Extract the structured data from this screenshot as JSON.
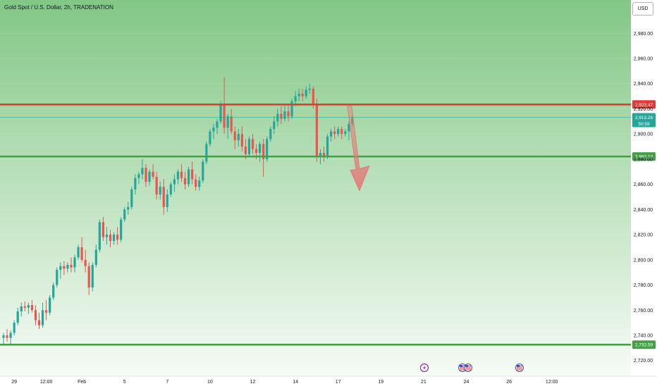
{
  "header": {
    "title": "Gold Spot / U.S. Dollar, 2h, TRADENATION",
    "currency_button": "USD"
  },
  "colors": {
    "bull": "#26a69a",
    "bear": "#ef5350",
    "resistance_line": "#e53935",
    "support_line": "#43a047",
    "arrow": "#e57373",
    "background_top": "#82c785",
    "background_bottom": "#f6fbf6",
    "price_badge": "#26a69a"
  },
  "markers": {
    "lightning_icon": "lightning-icon",
    "flag_icon": "us-flag-icon"
  },
  "chart_data": {
    "type": "candlestick",
    "title": "Gold Spot / U.S. Dollar, 2h, TRADENATION",
    "y_axis": {
      "ylim": [
        2712,
        3002
      ],
      "ticks": [
        "2,720.00",
        "2,740.00",
        "2,760.00",
        "2,780.00",
        "2,800.00",
        "2,820.00",
        "2,840.00",
        "2,860.00",
        "2,880.00",
        "2,900.00",
        "2,920.00",
        "2,940.00",
        "2,960.00",
        "2,980.00"
      ],
      "tick_values": [
        2720,
        2740,
        2760,
        2780,
        2800,
        2820,
        2840,
        2860,
        2880,
        2900,
        2920,
        2940,
        2960,
        2980
      ]
    },
    "x_axis": {
      "ticks": [
        "29",
        "12:00",
        "Feb",
        "5",
        "7",
        "10",
        "12",
        "14",
        "17",
        "19",
        "21",
        "24",
        "26",
        "12:00"
      ],
      "tick_bar_index": [
        3,
        12,
        22,
        34,
        46,
        58,
        70,
        82,
        94,
        106,
        118,
        130,
        142,
        154
      ]
    },
    "horizontal_levels": [
      {
        "label": "2,923.47",
        "value": 2923.47,
        "color": "#e53935"
      },
      {
        "label": "2,882.12",
        "value": 2882.12,
        "color": "#43a047"
      },
      {
        "label": "2,732.59",
        "value": 2732.59,
        "color": "#43a047"
      }
    ],
    "current_price": {
      "label": "2,913.26",
      "value": 2913.26,
      "countdown": "50:59"
    },
    "projection_arrow": {
      "from_bar": 97,
      "from_price": 2922,
      "to_bar": 99,
      "to_price": 2855
    },
    "ohlc": [
      [
        2738,
        2742,
        2733,
        2740
      ],
      [
        2740,
        2745,
        2735,
        2738
      ],
      [
        2738,
        2744,
        2732,
        2742
      ],
      [
        2742,
        2752,
        2740,
        2750
      ],
      [
        2750,
        2762,
        2748,
        2759
      ],
      [
        2759,
        2766,
        2755,
        2763
      ],
      [
        2763,
        2767,
        2759,
        2762
      ],
      [
        2762,
        2766,
        2757,
        2764
      ],
      [
        2764,
        2768,
        2758,
        2760
      ],
      [
        2760,
        2764,
        2748,
        2752
      ],
      [
        2752,
        2758,
        2745,
        2748
      ],
      [
        2748,
        2766,
        2746,
        2760
      ],
      [
        2760,
        2768,
        2752,
        2758
      ],
      [
        2758,
        2772,
        2756,
        2770
      ],
      [
        2770,
        2782,
        2768,
        2780
      ],
      [
        2780,
        2794,
        2778,
        2792
      ],
      [
        2792,
        2798,
        2785,
        2795
      ],
      [
        2795,
        2799,
        2788,
        2793
      ],
      [
        2793,
        2798,
        2790,
        2796
      ],
      [
        2796,
        2802,
        2790,
        2794
      ],
      [
        2794,
        2804,
        2790,
        2802
      ],
      [
        2802,
        2812,
        2800,
        2810
      ],
      [
        2810,
        2818,
        2798,
        2800
      ],
      [
        2800,
        2808,
        2790,
        2795
      ],
      [
        2795,
        2798,
        2772,
        2778
      ],
      [
        2778,
        2798,
        2775,
        2796
      ],
      [
        2796,
        2812,
        2794,
        2808
      ],
      [
        2808,
        2832,
        2806,
        2830
      ],
      [
        2830,
        2834,
        2815,
        2818
      ],
      [
        2818,
        2826,
        2812,
        2820
      ],
      [
        2820,
        2824,
        2810,
        2815
      ],
      [
        2815,
        2822,
        2812,
        2820
      ],
      [
        2820,
        2826,
        2812,
        2816
      ],
      [
        2816,
        2834,
        2814,
        2832
      ],
      [
        2832,
        2842,
        2830,
        2840
      ],
      [
        2840,
        2846,
        2836,
        2842
      ],
      [
        2842,
        2858,
        2840,
        2856
      ],
      [
        2856,
        2868,
        2852,
        2865
      ],
      [
        2865,
        2870,
        2860,
        2868
      ],
      [
        2868,
        2880,
        2864,
        2873
      ],
      [
        2873,
        2876,
        2858,
        2862
      ],
      [
        2862,
        2872,
        2859,
        2870
      ],
      [
        2870,
        2876,
        2864,
        2866
      ],
      [
        2866,
        2870,
        2848,
        2852
      ],
      [
        2852,
        2862,
        2848,
        2858
      ],
      [
        2858,
        2864,
        2836,
        2842
      ],
      [
        2842,
        2856,
        2838,
        2852
      ],
      [
        2852,
        2862,
        2850,
        2860
      ],
      [
        2860,
        2868,
        2854,
        2864
      ],
      [
        2864,
        2872,
        2860,
        2870
      ],
      [
        2870,
        2876,
        2862,
        2865
      ],
      [
        2865,
        2870,
        2856,
        2860
      ],
      [
        2860,
        2874,
        2858,
        2872
      ],
      [
        2872,
        2878,
        2860,
        2864
      ],
      [
        2864,
        2868,
        2855,
        2858
      ],
      [
        2858,
        2866,
        2855,
        2863
      ],
      [
        2863,
        2880,
        2861,
        2878
      ],
      [
        2878,
        2894,
        2876,
        2892
      ],
      [
        2892,
        2904,
        2890,
        2902
      ],
      [
        2902,
        2908,
        2896,
        2905
      ],
      [
        2905,
        2912,
        2900,
        2910
      ],
      [
        2910,
        2926,
        2908,
        2924
      ],
      [
        2924,
        2945,
        2900,
        2905
      ],
      [
        2905,
        2916,
        2896,
        2914
      ],
      [
        2914,
        2920,
        2900,
        2902
      ],
      [
        2902,
        2906,
        2888,
        2895
      ],
      [
        2895,
        2904,
        2890,
        2900
      ],
      [
        2900,
        2906,
        2886,
        2890
      ],
      [
        2890,
        2896,
        2880,
        2884
      ],
      [
        2884,
        2898,
        2882,
        2896
      ],
      [
        2896,
        2900,
        2884,
        2888
      ],
      [
        2888,
        2892,
        2880,
        2885
      ],
      [
        2885,
        2894,
        2878,
        2892
      ],
      [
        2892,
        2896,
        2866,
        2880
      ],
      [
        2880,
        2898,
        2878,
        2896
      ],
      [
        2896,
        2906,
        2894,
        2904
      ],
      [
        2904,
        2914,
        2900,
        2910
      ],
      [
        2910,
        2920,
        2906,
        2916
      ],
      [
        2916,
        2922,
        2908,
        2912
      ],
      [
        2912,
        2924,
        2910,
        2918
      ],
      [
        2918,
        2924,
        2910,
        2914
      ],
      [
        2914,
        2928,
        2912,
        2926
      ],
      [
        2926,
        2934,
        2922,
        2930
      ],
      [
        2930,
        2936,
        2926,
        2932
      ],
      [
        2932,
        2936,
        2926,
        2930
      ],
      [
        2930,
        2938,
        2928,
        2935
      ],
      [
        2935,
        2940,
        2932,
        2936
      ],
      [
        2936,
        2938,
        2920,
        2924
      ],
      [
        2924,
        2928,
        2878,
        2882
      ],
      [
        2882,
        2888,
        2876,
        2885
      ],
      [
        2885,
        2890,
        2878,
        2882
      ],
      [
        2882,
        2900,
        2880,
        2898
      ],
      [
        2898,
        2904,
        2894,
        2902
      ],
      [
        2902,
        2906,
        2896,
        2900
      ],
      [
        2900,
        2906,
        2898,
        2904
      ],
      [
        2904,
        2906,
        2896,
        2900
      ],
      [
        2900,
        2904,
        2898,
        2902
      ],
      [
        2902,
        2910,
        2895,
        2908
      ],
      [
        2908,
        2915,
        2906,
        2913
      ]
    ]
  }
}
